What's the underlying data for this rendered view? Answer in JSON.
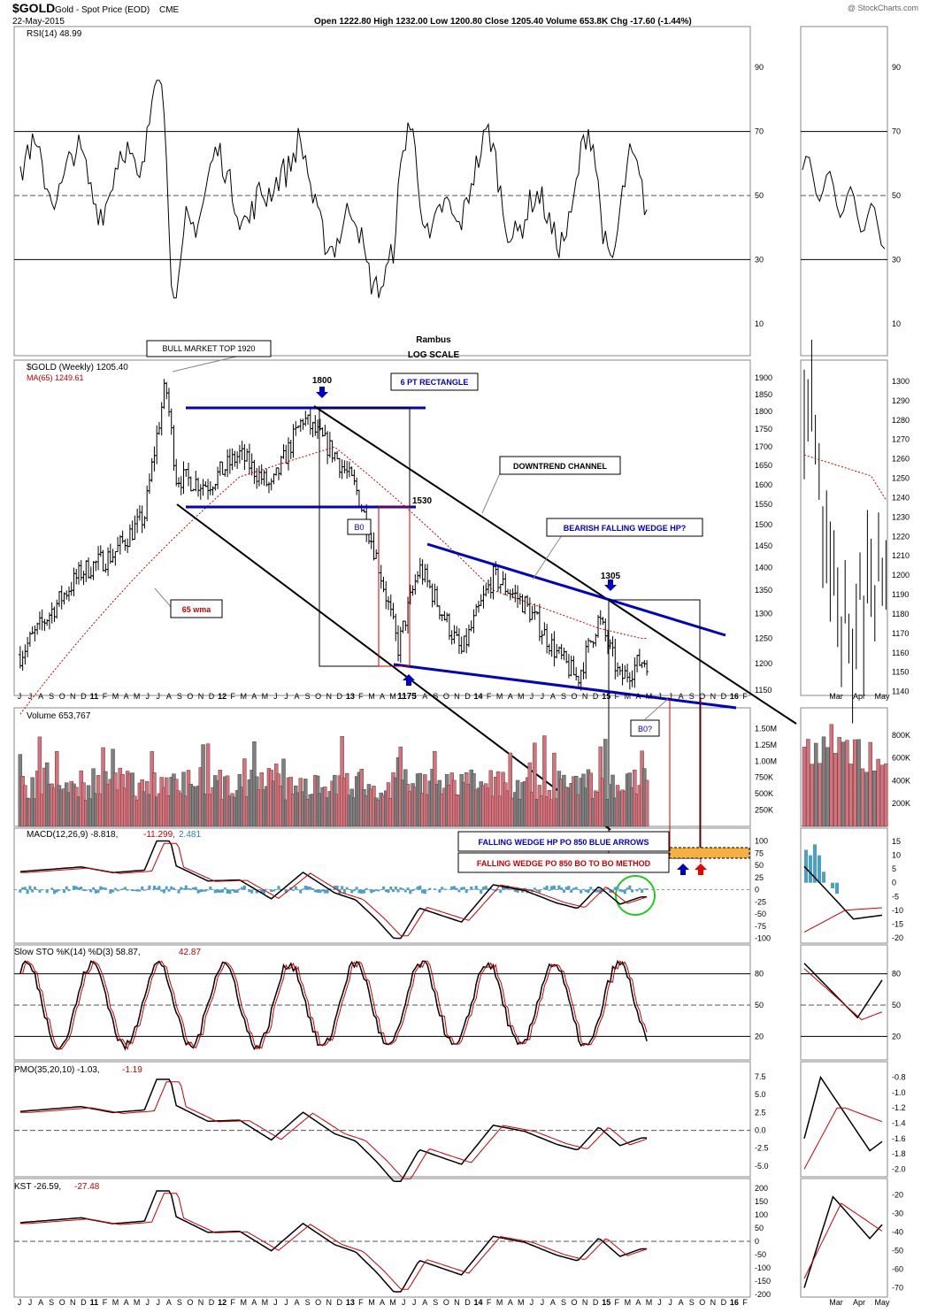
{
  "header": {
    "symbol": "$GOLD",
    "name": "Gold - Spot Price (EOD)",
    "exchange": "CME",
    "date": "22-May-2015",
    "quote": "Open 1222.80  High 1232.00  Low 1200.80  Close 1205.40  Volume 653.8K  Chg -17.60 (-1.44%)",
    "watermark": "@ StockCharts.com"
  },
  "colors": {
    "up_bar": "#000000",
    "down_bar": "#000000",
    "ma_line": "#cc0000",
    "vol_up": "#808080",
    "vol_down": "#d9707a",
    "annotation_blue": "#0000cc",
    "channel_black": "#000000",
    "rsi_overbought_fill": "#5a8a5a",
    "rsi_oversold_fill": "#a07070",
    "macd_hist": "#4aa0c8",
    "signal_red": "#cc0000",
    "orange_box": "#f5b042"
  },
  "panels": {
    "rsi": {
      "label": "RSI(14) 48.99",
      "ticks": [
        "90",
        "70",
        "50",
        "30",
        "10"
      ]
    },
    "price": {
      "label": "$GOLD (Weekly) 1205.40",
      "ma_label": "MA(65) 1249.61",
      "scale_note": "LOG SCALE",
      "author": "Rambus",
      "ticks_main": [
        "1900",
        "1850",
        "1800",
        "1750",
        "1700",
        "1650",
        "1600",
        "1550",
        "1500",
        "1450",
        "1400",
        "1350",
        "1300",
        "1250",
        "1200",
        "1150"
      ],
      "ticks_side": [
        "1300",
        "1290",
        "1280",
        "1270",
        "1260",
        "1250",
        "1240",
        "1230",
        "1220",
        "1210",
        "1200",
        "1190",
        "1180",
        "1170",
        "1160",
        "1150",
        "1140"
      ]
    },
    "volume": {
      "label": "Volume 653,767",
      "ticks_main": [
        "1.50M",
        "1.25M",
        "1.00M",
        "750K",
        "500K",
        "250K"
      ],
      "ticks_side": [
        "800K",
        "600K",
        "400K",
        "200K"
      ]
    },
    "macd": {
      "label": "MACD(12,26,9) -8.818,",
      "signal": "-11.299,",
      "hist": "2.481",
      "ticks_main": [
        "100",
        "75",
        "50",
        "25",
        "0",
        "-25",
        "-50",
        "-75",
        "-100"
      ],
      "ticks_side": [
        "15",
        "10",
        "5",
        "0",
        "-5",
        "-10",
        "-15",
        "-20"
      ]
    },
    "sto": {
      "label": "Slow STO %K(14) %D(3) 58.87,",
      "d": "42.87",
      "ticks": [
        "80",
        "50",
        "20"
      ]
    },
    "pmo": {
      "label": "PMO(35,20,10) -1.03,",
      "signal": "-1.19",
      "ticks_main": [
        "7.5",
        "5.0",
        "2.5",
        "0.0",
        "-2.5",
        "-5.0"
      ],
      "ticks_side": [
        "-0.8",
        "-1.0",
        "-1.2",
        "-1.4",
        "-1.6",
        "-1.8",
        "-2.0"
      ]
    },
    "kst": {
      "label": "KST -26.59,",
      "signal": "-27.48",
      "ticks_main": [
        "200",
        "150",
        "100",
        "50",
        "0",
        "-50",
        "-100",
        "-150",
        "-200"
      ],
      "ticks_side": [
        "-20",
        "-30",
        "-40",
        "-50",
        "-60",
        "-70"
      ]
    }
  },
  "annotations": {
    "bull_top": "BULL MARKET TOP 1920",
    "rect": "6 PT RECTANGLE",
    "p1800": "1800",
    "p1530": "1530",
    "p1305": "1305",
    "p1175": "1175",
    "bo": "B0",
    "bo_q": "B0?",
    "downtrend": "DOWNTREND CHANNEL",
    "wedge": "BEARISH FALLING WEDGE HP?",
    "wma": "65 wma",
    "po_blue": "FALLING WEDGE HP PO 850 BLUE ARROWS",
    "po_red": "FALLING WEDGE PO 850 BO TO BO METHOD"
  },
  "x_axis": {
    "main": [
      "J",
      "J",
      "A",
      "S",
      "O",
      "N",
      "D",
      "11",
      "F",
      "M",
      "A",
      "M",
      "J",
      "J",
      "A",
      "S",
      "O",
      "N",
      "D",
      "12",
      "F",
      "M",
      "A",
      "M",
      "J",
      "J",
      "A",
      "S",
      "O",
      "N",
      "D",
      "13",
      "F",
      "M",
      "A",
      "M",
      "J",
      "J",
      "A",
      "S",
      "O",
      "N",
      "D",
      "14",
      "F",
      "M",
      "A",
      "M",
      "J",
      "J",
      "A",
      "S",
      "O",
      "N",
      "D",
      "15",
      "F",
      "M",
      "A",
      "M",
      "J",
      "J",
      "A",
      "S",
      "O",
      "N",
      "D",
      "16",
      "F"
    ],
    "side": [
      "Mar",
      "Apr",
      "May"
    ]
  },
  "chart_data": {
    "type": "candlestick",
    "title": "$GOLD Gold - Spot Price (EOD) CME",
    "timeframe": "weekly",
    "scale": "log",
    "last": {
      "open": 1222.8,
      "high": 1232.0,
      "low": 1200.8,
      "close": 1205.4,
      "volume": 653767,
      "change": -17.6,
      "change_pct": -1.44
    },
    "price_points": [
      {
        "x": "2010-06",
        "close": 1210
      },
      {
        "x": "2010-09",
        "close": 1300
      },
      {
        "x": "2010-12",
        "close": 1390
      },
      {
        "x": "2011-03",
        "close": 1430
      },
      {
        "x": "2011-06",
        "close": 1520
      },
      {
        "x": "2011-08",
        "close": 1880
      },
      {
        "x": "2011-09",
        "close": 1620
      },
      {
        "x": "2011-12",
        "close": 1600
      },
      {
        "x": "2012-03",
        "close": 1680
      },
      {
        "x": "2012-06",
        "close": 1590
      },
      {
        "x": "2012-09",
        "close": 1780
      },
      {
        "x": "2012-12",
        "close": 1680
      },
      {
        "x": "2013-02",
        "close": 1590
      },
      {
        "x": "2013-04",
        "close": 1420
      },
      {
        "x": "2013-06",
        "close": 1230
      },
      {
        "x": "2013-08",
        "close": 1400
      },
      {
        "x": "2013-12",
        "close": 1220
      },
      {
        "x": "2014-03",
        "close": 1380
      },
      {
        "x": "2014-06",
        "close": 1320
      },
      {
        "x": "2014-09",
        "close": 1220
      },
      {
        "x": "2014-11",
        "close": 1170
      },
      {
        "x": "2015-01",
        "close": 1290
      },
      {
        "x": "2015-03",
        "close": 1170
      },
      {
        "x": "2015-05",
        "close": 1205
      }
    ],
    "ma65_points": [
      {
        "x": "2010-06",
        "value": 1100
      },
      {
        "x": "2011-06",
        "value": 1400
      },
      {
        "x": "2012-03",
        "value": 1620
      },
      {
        "x": "2012-12",
        "value": 1700
      },
      {
        "x": "2013-06",
        "value": 1560
      },
      {
        "x": "2014-03",
        "value": 1350
      },
      {
        "x": "2015-01",
        "value": 1270
      },
      {
        "x": "2015-05",
        "value": 1249.61
      }
    ],
    "indicators": {
      "rsi14": 48.99,
      "ma65": 1249.61,
      "macd": -8.818,
      "macd_signal": -11.299,
      "macd_hist": 2.481,
      "sto_k": 58.87,
      "sto_d": 42.87,
      "pmo": -1.03,
      "pmo_signal": -1.19,
      "kst": -26.59,
      "kst_signal": -27.48
    },
    "levels": {
      "rect_top": 1800,
      "rect_bottom": 1530,
      "wedge_high": 1305,
      "wedge_low": 1175,
      "bull_top": 1920,
      "price_objective": 850
    }
  }
}
